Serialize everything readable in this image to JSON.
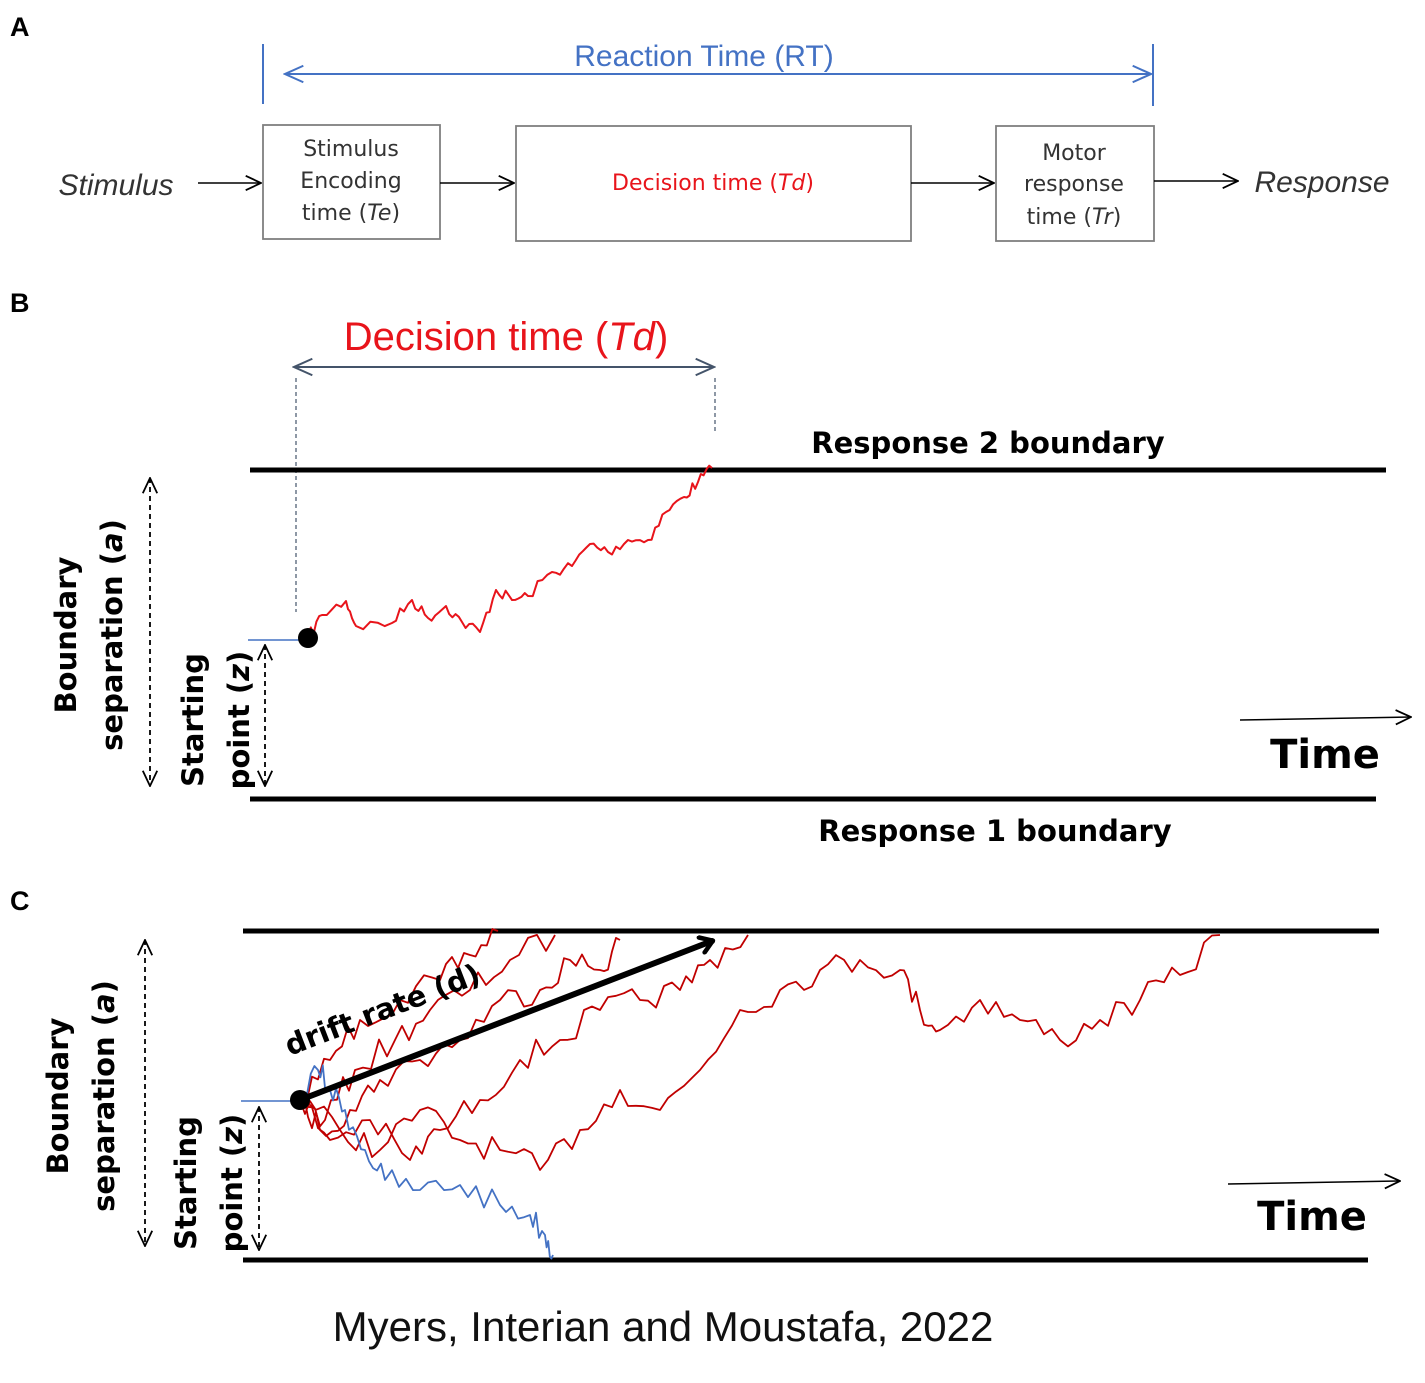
{
  "panel_a": {
    "label": "A",
    "reaction_time": "Reaction Time (RT)",
    "stimulus": "Stimulus",
    "response": "Response",
    "encoding": {
      "line1": "Stimulus",
      "line2": "Encoding",
      "line3_pre": "time (",
      "line3_var": "Te",
      "line3_post": ")"
    },
    "decision": {
      "pre": "Decision time (",
      "var": "Td",
      "post": ")"
    },
    "motor": {
      "line1": "Motor",
      "line2": "response",
      "line3_pre": "time (",
      "line3_var": "Tr",
      "line3_post": ")"
    }
  },
  "panel_b": {
    "label": "B",
    "decision_time": {
      "pre": "Decision time (",
      "var": "Td",
      "post": ")"
    },
    "upper_boundary": "Response 2 boundary",
    "lower_boundary": "Response 1 boundary",
    "sep_line1": "Boundary",
    "sep_line2_pre": "separation (",
    "sep_var": "a",
    "sep_line2_post": ")",
    "start_line1": "Starting",
    "start_line2_pre": "point (",
    "start_var": "z",
    "start_line2_post": ")",
    "time": "Time"
  },
  "panel_c": {
    "label": "C",
    "drift": "drift rate (d)",
    "sep_line1": "Boundary",
    "sep_line2_pre": "separation (",
    "sep_var": "a",
    "sep_line2_post": ")",
    "start_line1": "Starting",
    "start_line2_pre": "point (",
    "start_var": "z",
    "start_line2_post": ")",
    "time": "Time"
  },
  "citation": "Myers, Interian and Moustafa, 2022",
  "colors": {
    "blue": "#4472c4",
    "red": "#e8141b",
    "dark_red": "#c00000",
    "black": "#000000",
    "box": "#7f7f7f"
  }
}
